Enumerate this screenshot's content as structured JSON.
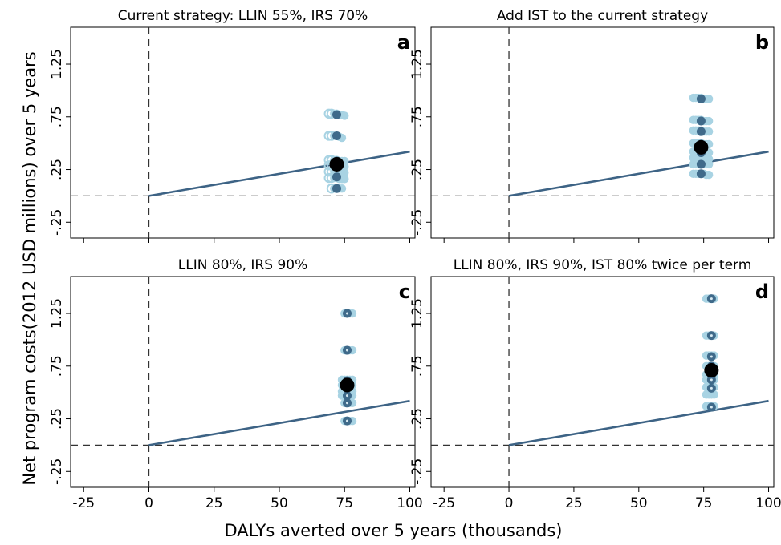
{
  "chart_data": [
    {
      "type": "scatter",
      "panel_letter": "a",
      "title": "Current strategy: LLIN 55%, IRS 70%",
      "xlim": [
        -30,
        102
      ],
      "ylim": [
        -0.4,
        1.6
      ],
      "x_ticks": [
        -25,
        0,
        25,
        50,
        75,
        100
      ],
      "y_ticks": [
        -0.25,
        0.25,
        0.75,
        1.25
      ],
      "y_tick_labels": [
        "-.25",
        ".25",
        ".75",
        "1.25"
      ],
      "threshold_line": {
        "from": [
          0,
          0
        ],
        "to": [
          100,
          0.42
        ]
      },
      "reference_lines": {
        "x": 0,
        "y": 0
      },
      "series": [
        {
          "values_x": [
            69,
            70,
            71,
            72,
            73,
            74,
            75,
            69,
            70,
            71,
            72,
            73,
            74,
            69,
            70,
            71,
            72,
            73,
            74,
            75,
            69,
            70,
            71,
            72,
            73,
            74,
            75,
            69,
            70,
            71,
            72,
            73,
            74,
            75,
            69,
            70,
            71,
            72,
            73,
            74,
            75,
            70,
            71,
            72,
            73,
            74
          ],
          "values_y": [
            0.78,
            0.78,
            0.78,
            0.78,
            0.77,
            0.77,
            0.76,
            0.57,
            0.57,
            0.57,
            0.57,
            0.56,
            0.55,
            0.34,
            0.34,
            0.34,
            0.34,
            0.33,
            0.33,
            0.33,
            0.29,
            0.29,
            0.29,
            0.29,
            0.28,
            0.28,
            0.28,
            0.23,
            0.23,
            0.23,
            0.23,
            0.22,
            0.22,
            0.22,
            0.17,
            0.17,
            0.17,
            0.17,
            0.16,
            0.16,
            0.16,
            0.07,
            0.07,
            0.07,
            0.07,
            0.07
          ]
        },
        {
          "values_x": [
            72,
            72,
            72,
            72,
            72,
            72
          ],
          "values_y": [
            0.77,
            0.57,
            0.33,
            0.28,
            0.18,
            0.07
          ]
        },
        {
          "values_x": [
            72
          ],
          "values_y": [
            0.3
          ]
        }
      ]
    },
    {
      "type": "scatter",
      "panel_letter": "b",
      "title": "Add IST to the current strategy",
      "xlim": [
        -30,
        102
      ],
      "ylim": [
        -0.4,
        1.6
      ],
      "x_ticks": [
        -25,
        0,
        25,
        50,
        75,
        100
      ],
      "y_ticks": [
        -0.25,
        0.25,
        0.75,
        1.25
      ],
      "y_tick_labels": [
        "-.25",
        ".25",
        ".75",
        "1.25"
      ],
      "threshold_line": {
        "from": [
          0,
          0
        ],
        "to": [
          100,
          0.42
        ]
      },
      "reference_lines": {
        "x": 0,
        "y": 0
      },
      "series": [
        {
          "values_x": [
            71,
            72,
            73,
            74,
            75,
            76,
            77,
            71,
            72,
            73,
            74,
            75,
            76,
            77,
            71,
            72,
            73,
            74,
            75,
            76,
            77,
            71,
            72,
            73,
            74,
            75,
            76,
            77,
            71,
            72,
            73,
            74,
            75,
            76,
            77,
            71,
            72,
            73,
            74,
            75,
            76,
            77,
            71,
            72,
            73,
            74,
            75,
            76,
            77,
            71,
            72,
            73,
            74,
            75,
            76,
            77
          ],
          "values_y": [
            0.93,
            0.93,
            0.93,
            0.93,
            0.92,
            0.92,
            0.92,
            0.72,
            0.72,
            0.72,
            0.72,
            0.71,
            0.71,
            0.71,
            0.62,
            0.62,
            0.62,
            0.62,
            0.61,
            0.61,
            0.61,
            0.5,
            0.5,
            0.5,
            0.5,
            0.49,
            0.49,
            0.49,
            0.42,
            0.42,
            0.42,
            0.42,
            0.41,
            0.41,
            0.41,
            0.36,
            0.36,
            0.36,
            0.36,
            0.35,
            0.35,
            0.35,
            0.3,
            0.3,
            0.3,
            0.3,
            0.3,
            0.3,
            0.3,
            0.21,
            0.21,
            0.21,
            0.21,
            0.21,
            0.2,
            0.2
          ]
        },
        {
          "values_x": [
            74,
            74,
            74,
            74,
            74,
            74,
            74
          ],
          "values_y": [
            0.92,
            0.71,
            0.61,
            0.49,
            0.41,
            0.3,
            0.21
          ]
        },
        {
          "values_x": [
            74
          ],
          "values_y": [
            0.46
          ]
        }
      ]
    },
    {
      "type": "scatter",
      "panel_letter": "c",
      "title": "LLIN 80%, IRS 90%",
      "xlim": [
        -30,
        102
      ],
      "ylim": [
        -0.4,
        1.6
      ],
      "x_ticks": [
        -25,
        0,
        25,
        50,
        75,
        100
      ],
      "y_ticks": [
        -0.25,
        0.25,
        0.75,
        1.25
      ],
      "y_tick_labels": [
        "-.25",
        ".25",
        ".75",
        "1.25"
      ],
      "threshold_line": {
        "from": [
          0,
          0
        ],
        "to": [
          100,
          0.42
        ]
      },
      "reference_lines": {
        "x": 0,
        "y": 0
      },
      "series": [
        {
          "values_x": [
            75,
            76,
            77,
            78,
            75,
            76,
            77,
            78,
            74,
            75,
            76,
            77,
            78,
            74,
            75,
            76,
            77,
            78,
            74,
            75,
            76,
            77,
            78,
            74,
            75,
            76,
            77,
            78,
            75,
            76,
            77,
            78,
            75,
            76,
            77,
            78
          ],
          "values_y": [
            1.25,
            1.25,
            1.25,
            1.25,
            0.9,
            0.9,
            0.9,
            0.9,
            0.62,
            0.62,
            0.62,
            0.62,
            0.62,
            0.57,
            0.57,
            0.57,
            0.57,
            0.57,
            0.51,
            0.51,
            0.51,
            0.51,
            0.51,
            0.47,
            0.47,
            0.47,
            0.47,
            0.47,
            0.4,
            0.4,
            0.4,
            0.4,
            0.23,
            0.23,
            0.23,
            0.23
          ]
        },
        {
          "values_x": [
            76,
            76,
            76,
            76,
            76,
            76,
            76
          ],
          "values_y": [
            1.25,
            0.9,
            0.61,
            0.55,
            0.47,
            0.4,
            0.23
          ]
        },
        {
          "values_x": [
            76
          ],
          "values_y": [
            0.57
          ]
        }
      ]
    },
    {
      "type": "scatter",
      "panel_letter": "d",
      "title": "LLIN 80%, IRS 90%, IST 80% twice per term",
      "xlim": [
        -30,
        102
      ],
      "ylim": [
        -0.4,
        1.6
      ],
      "x_ticks": [
        -25,
        0,
        25,
        50,
        75,
        100
      ],
      "y_ticks": [
        -0.25,
        0.25,
        0.75,
        1.25
      ],
      "y_tick_labels": [
        "-.25",
        ".25",
        ".75",
        "1.25"
      ],
      "threshold_line": {
        "from": [
          0,
          0
        ],
        "to": [
          100,
          0.42
        ]
      },
      "reference_lines": {
        "x": 0,
        "y": 0
      },
      "series": [
        {
          "values_x": [
            76,
            77,
            78,
            79,
            76,
            77,
            78,
            79,
            76,
            77,
            78,
            79,
            76,
            77,
            78,
            79,
            76,
            77,
            78,
            79,
            76,
            77,
            78,
            79,
            76,
            77,
            78,
            79,
            76,
            77,
            78,
            79,
            76,
            77,
            78,
            79
          ],
          "values_y": [
            1.39,
            1.39,
            1.39,
            1.39,
            1.04,
            1.04,
            1.04,
            1.04,
            0.85,
            0.85,
            0.85,
            0.85,
            0.75,
            0.75,
            0.75,
            0.75,
            0.67,
            0.67,
            0.67,
            0.67,
            0.62,
            0.62,
            0.62,
            0.62,
            0.55,
            0.55,
            0.55,
            0.55,
            0.48,
            0.48,
            0.48,
            0.48,
            0.37,
            0.37,
            0.37,
            0.37
          ]
        },
        {
          "values_x": [
            78,
            78,
            78,
            78,
            78,
            78,
            78,
            78
          ],
          "values_y": [
            1.39,
            1.04,
            0.84,
            0.75,
            0.66,
            0.62,
            0.54,
            0.36
          ]
        },
        {
          "values_x": [
            78
          ],
          "values_y": [
            0.71
          ]
        }
      ]
    }
  ],
  "xlabel": "DALYs averted over 5 years (thousands)",
  "ylabel": "Net program costs(2012 USD millions) over 5 years",
  "colors": {
    "light": "#a8d3e3",
    "dark": "#3f6a8a",
    "mean": "#000000",
    "threshold": "#3d6385",
    "reference": "#333333"
  }
}
